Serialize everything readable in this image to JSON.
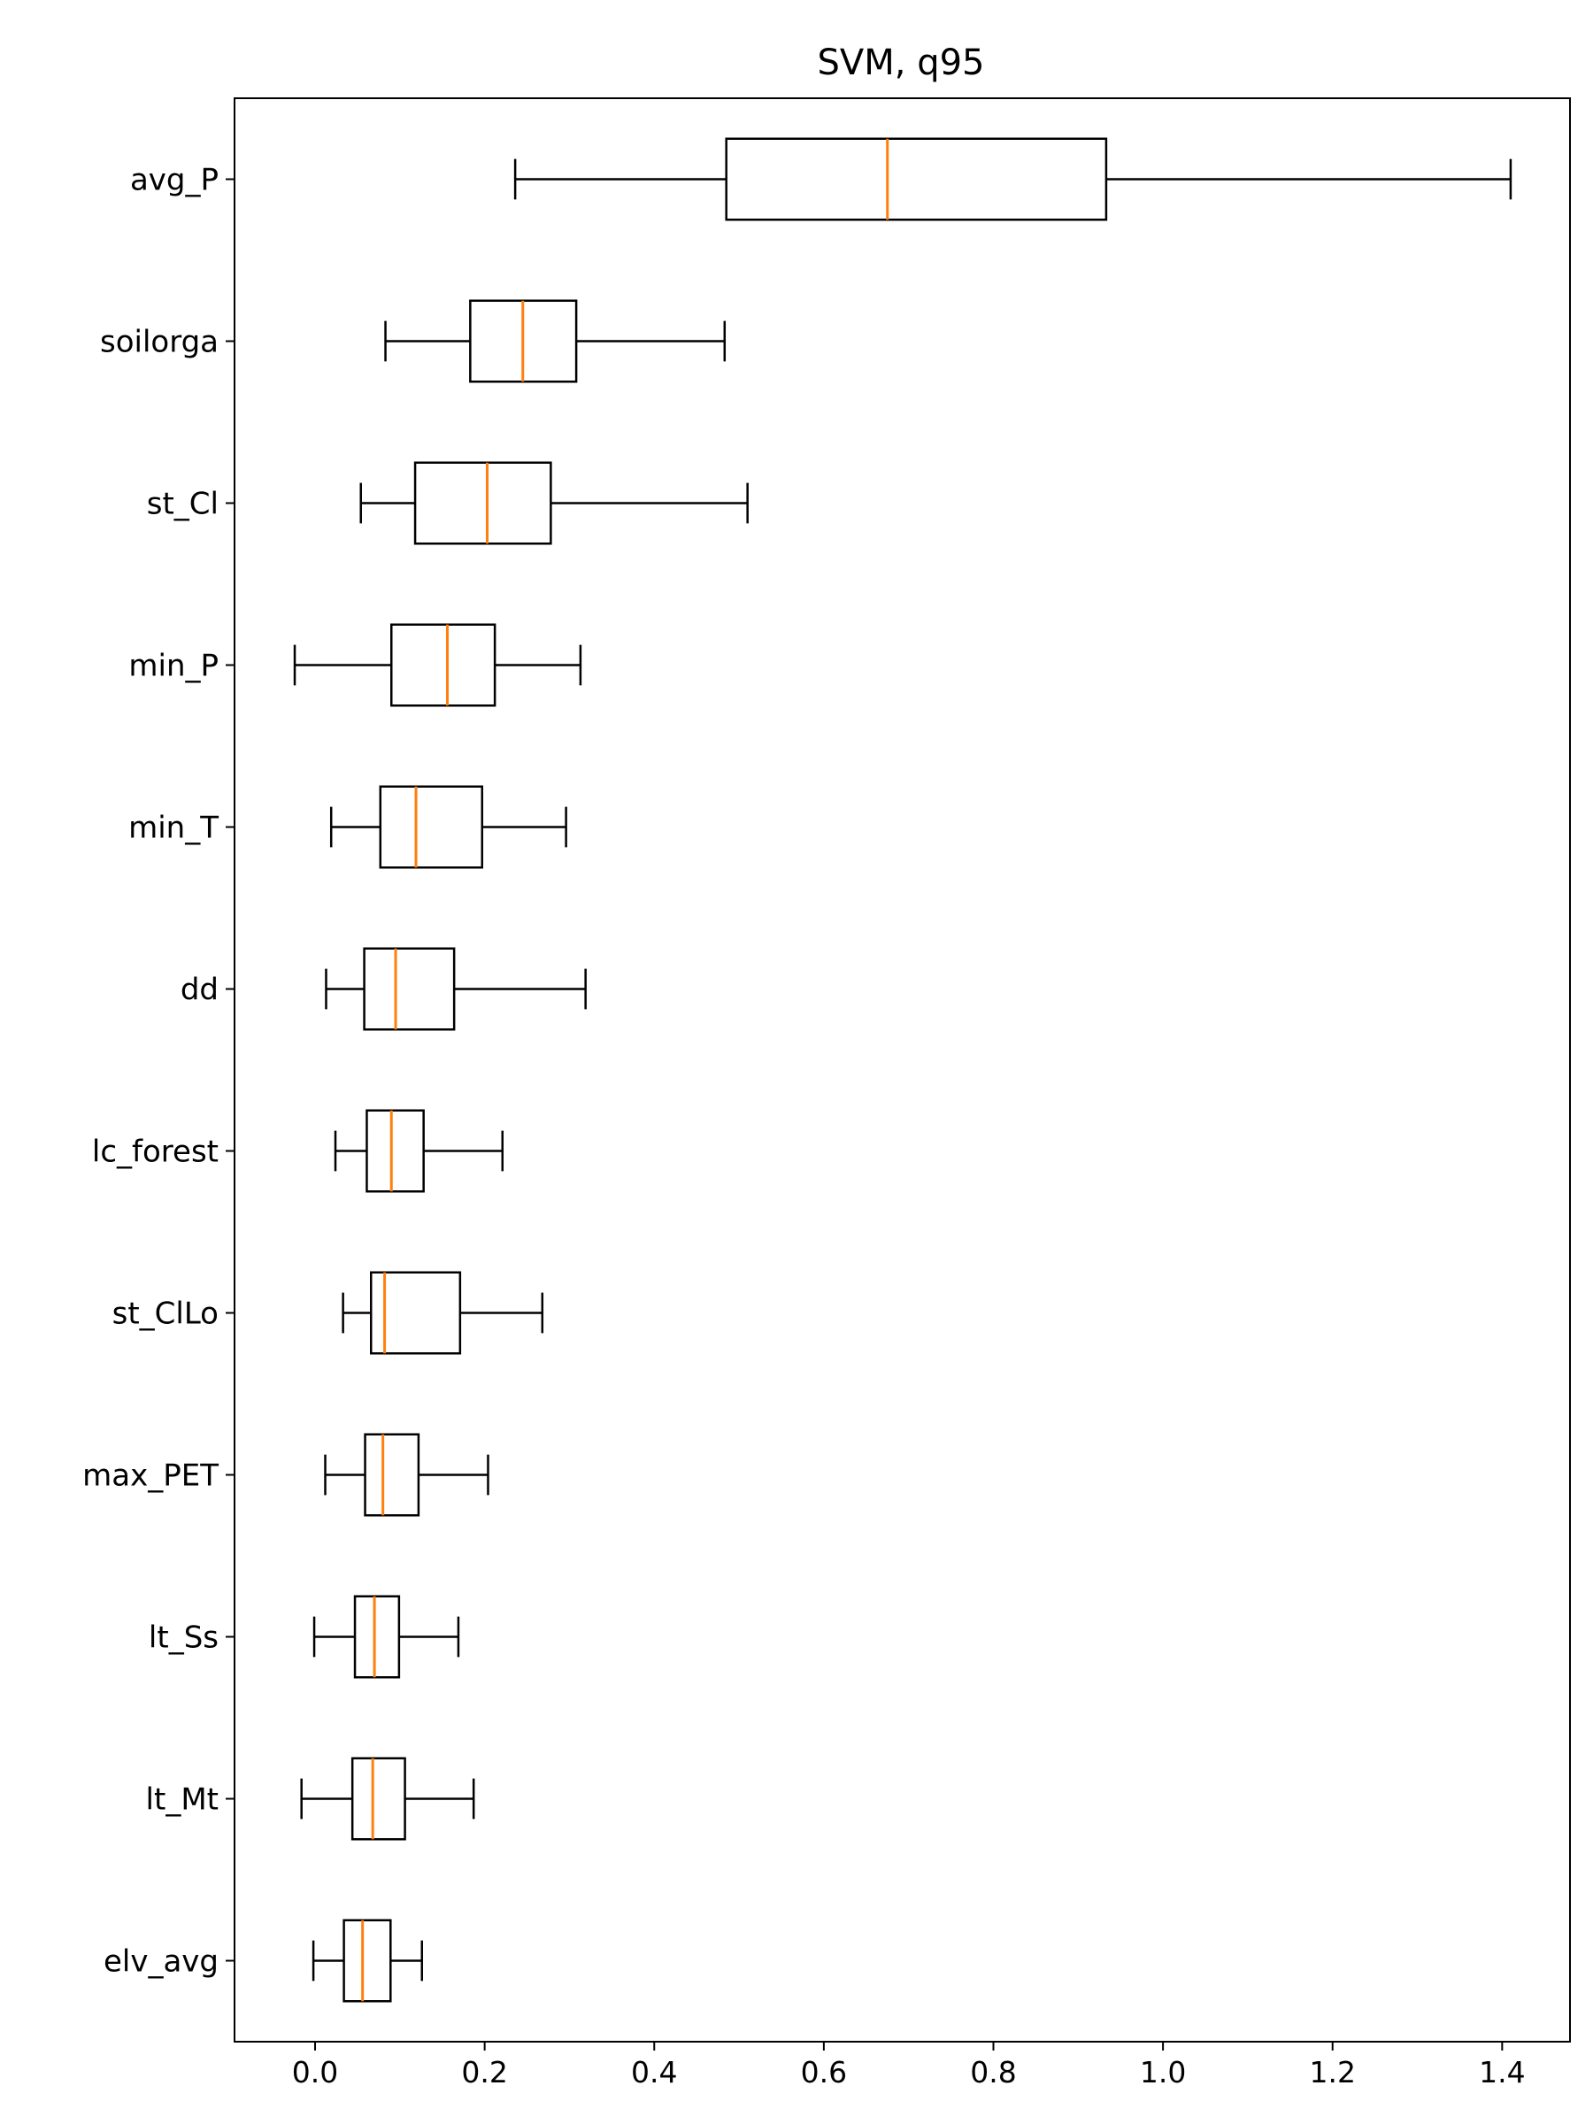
{
  "chart_data": {
    "type": "boxplot",
    "orientation": "horizontal",
    "title": "SVM, q95",
    "xlabel": "",
    "ylabel": "",
    "xlim": [
      -0.095,
      1.48
    ],
    "xticks": [
      0.0,
      0.2,
      0.4,
      0.6,
      0.8,
      1.0,
      1.2,
      1.4
    ],
    "xtick_labels": [
      "0.0",
      "0.2",
      "0.4",
      "0.6",
      "0.8",
      "1.0",
      "1.2",
      "1.4"
    ],
    "grid": false,
    "colors": {
      "box": "#000000",
      "median": "#ff7f0e"
    },
    "categories": [
      "avg_P",
      "soilorga",
      "st_Cl",
      "min_P",
      "min_T",
      "dd",
      "lc_forest",
      "st_ClLo",
      "max_PET",
      "lt_Ss",
      "lt_Mt",
      "elv_avg"
    ],
    "boxes": [
      {
        "label": "avg_P",
        "whisker_low": 0.236,
        "q1": 0.485,
        "median": 0.675,
        "q3": 0.933,
        "whisker_high": 1.41
      },
      {
        "label": "soilorga",
        "whisker_low": 0.083,
        "q1": 0.183,
        "median": 0.245,
        "q3": 0.308,
        "whisker_high": 0.483
      },
      {
        "label": "st_Cl",
        "whisker_low": 0.054,
        "q1": 0.118,
        "median": 0.203,
        "q3": 0.278,
        "whisker_high": 0.51
      },
      {
        "label": "min_P",
        "whisker_low": -0.024,
        "q1": 0.09,
        "median": 0.156,
        "q3": 0.212,
        "whisker_high": 0.313
      },
      {
        "label": "min_T",
        "whisker_low": 0.019,
        "q1": 0.077,
        "median": 0.119,
        "q3": 0.197,
        "whisker_high": 0.296
      },
      {
        "label": "dd",
        "whisker_low": 0.013,
        "q1": 0.058,
        "median": 0.095,
        "q3": 0.164,
        "whisker_high": 0.319
      },
      {
        "label": "lc_forest",
        "whisker_low": 0.024,
        "q1": 0.061,
        "median": 0.09,
        "q3": 0.128,
        "whisker_high": 0.221
      },
      {
        "label": "st_ClLo",
        "whisker_low": 0.033,
        "q1": 0.066,
        "median": 0.082,
        "q3": 0.171,
        "whisker_high": 0.268
      },
      {
        "label": "max_PET",
        "whisker_low": 0.012,
        "q1": 0.059,
        "median": 0.08,
        "q3": 0.122,
        "whisker_high": 0.204
      },
      {
        "label": "lt_Ss",
        "whisker_low": -0.001,
        "q1": 0.047,
        "median": 0.07,
        "q3": 0.099,
        "whisker_high": 0.169
      },
      {
        "label": "lt_Mt",
        "whisker_low": -0.016,
        "q1": 0.044,
        "median": 0.068,
        "q3": 0.106,
        "whisker_high": 0.187
      },
      {
        "label": "elv_avg",
        "whisker_low": -0.002,
        "q1": 0.034,
        "median": 0.056,
        "q3": 0.089,
        "whisker_high": 0.126
      }
    ]
  }
}
